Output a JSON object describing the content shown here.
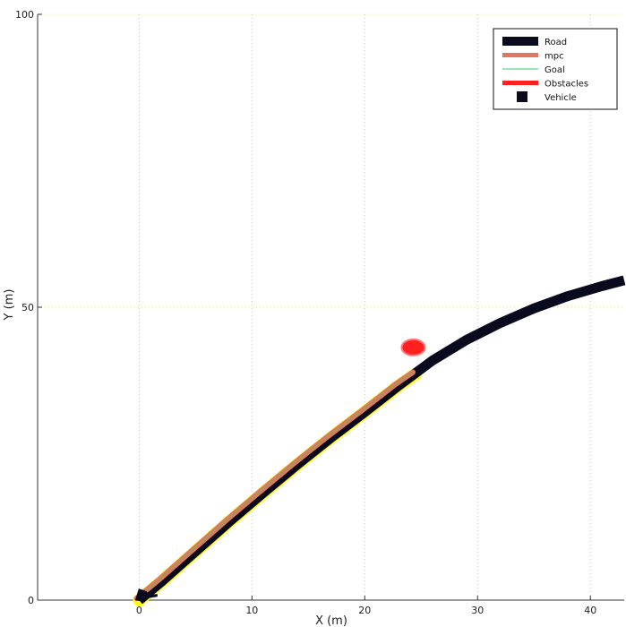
{
  "chart_data": {
    "type": "line",
    "title": "",
    "xlabel": "X (m)",
    "ylabel": "Y (m)",
    "xlim": [
      -9,
      43
    ],
    "ylim": [
      0,
      100
    ],
    "xticks": [
      0,
      10,
      20,
      30,
      40
    ],
    "yticks": [
      0,
      50,
      100
    ],
    "grid": true,
    "legend_position": "top-right",
    "series": [
      {
        "name": "Road",
        "color": "#0a0a1e",
        "style": "thick-line",
        "x": [
          0,
          2,
          5,
          8,
          11,
          14,
          17,
          20,
          23,
          26,
          29,
          32,
          35,
          38,
          41,
          43
        ],
        "y": [
          0,
          3.2,
          8.3,
          13.4,
          18.3,
          23.1,
          27.7,
          32.1,
          36.6,
          40.9,
          44.4,
          47.3,
          49.8,
          51.9,
          53.6,
          54.6
        ]
      },
      {
        "name": "mpc",
        "color": "#e07860",
        "style": "line",
        "x": [
          0,
          2,
          5,
          8,
          11,
          14,
          17,
          20,
          23,
          24.5
        ],
        "y": [
          0,
          3.2,
          8.3,
          13.4,
          18.3,
          23.1,
          27.7,
          32.1,
          36.6,
          38.6
        ]
      },
      {
        "name": "Goal",
        "color": "#33cc66",
        "style": "thin-line",
        "x": [
          0,
          2,
          5,
          8,
          11,
          14,
          17,
          20,
          23,
          24.5
        ],
        "y": [
          0,
          3.2,
          8.3,
          13.4,
          18.3,
          23.1,
          27.7,
          32.1,
          36.6,
          38.6
        ]
      },
      {
        "name": "Obstacles",
        "color": "#ff2020",
        "style": "ellipse",
        "x": [
          24.3
        ],
        "y": [
          38.4
        ]
      },
      {
        "name": "Vehicle",
        "color": "#0a0a1e",
        "style": "marker",
        "x": [
          0.2
        ],
        "y": [
          0.6
        ]
      }
    ],
    "highlight_color": "#ffff00"
  }
}
